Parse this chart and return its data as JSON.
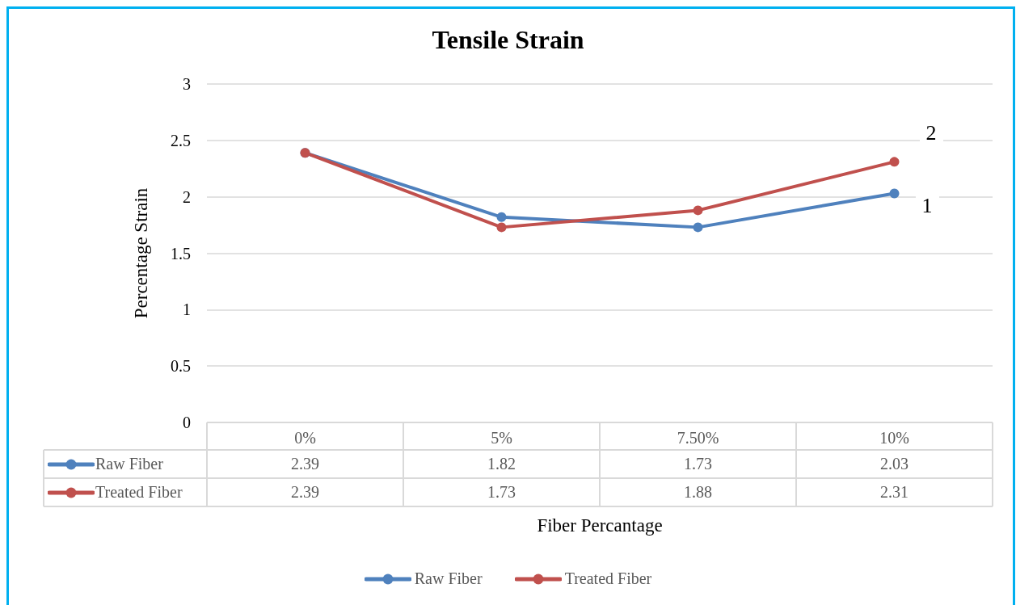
{
  "chart_data": {
    "type": "line",
    "title": "Tensile Strain",
    "xlabel": "Fiber Percantage",
    "ylabel": "Percentage Strain",
    "categories": [
      "0%",
      "5%",
      "7.50%",
      "10%"
    ],
    "series": [
      {
        "name": "Raw Fiber",
        "color": "#4f81bd",
        "values": [
          2.39,
          1.82,
          1.73,
          2.03
        ]
      },
      {
        "name": "Treated Fiber",
        "color": "#c0504d",
        "values": [
          2.39,
          1.73,
          1.88,
          2.31
        ]
      }
    ],
    "ylim": [
      0,
      3
    ],
    "yticks": [
      0,
      0.5,
      1,
      1.5,
      2,
      2.5,
      3
    ],
    "grid": "y",
    "legend": "bottom",
    "marker": "circle",
    "data_labels": true,
    "annotations": [
      "2",
      "1"
    ]
  }
}
